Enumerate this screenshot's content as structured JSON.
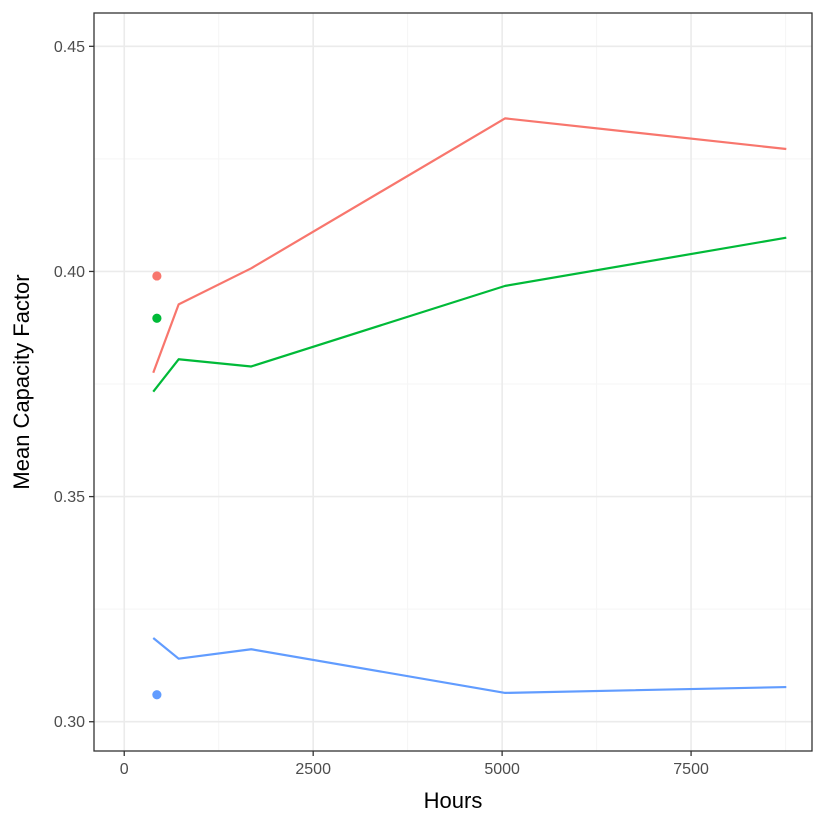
{
  "chart_data": {
    "type": "line",
    "title": "",
    "xlabel": "Hours",
    "ylabel": "Mean Capacity Factor",
    "xlim": [
      -400,
      9100
    ],
    "ylim": [
      0.2935,
      0.4574
    ],
    "x_ticks": [
      0,
      2500,
      5000,
      7500
    ],
    "x_tick_labels": [
      "0",
      "2500",
      "5000",
      "7500"
    ],
    "y_ticks": [
      0.3,
      0.35,
      0.4,
      0.45
    ],
    "y_tick_labels": [
      "0.30",
      "0.35",
      "0.40",
      "0.45"
    ],
    "x_minor_ticks": [
      1250,
      3750,
      6250,
      8750
    ],
    "y_minor_ticks": [
      0.325,
      0.375,
      0.425
    ],
    "grid": true,
    "legend": "none",
    "series": [
      {
        "color": "#F8766D",
        "lines": [
          {
            "x": [
              384,
              720,
              1680,
              5040,
              8760
            ],
            "y": [
              0.3775,
              0.3927,
              0.4007,
              0.434,
              0.4272
            ]
          }
        ],
        "points": [
          {
            "x": 432,
            "y": 0.399
          }
        ]
      },
      {
        "color": "#00BA38",
        "lines": [
          {
            "x": [
              384,
              720,
              1680,
              5040,
              8760
            ],
            "y": [
              0.3733,
              0.3805,
              0.3789,
              0.3968,
              0.4075
            ]
          }
        ],
        "points": [
          {
            "x": 432,
            "y": 0.3896
          }
        ]
      },
      {
        "color": "#619CFF",
        "lines": [
          {
            "x": [
              384,
              720,
              1680,
              5040,
              8760
            ],
            "y": [
              0.3186,
              0.314,
              0.3161,
              0.3064,
              0.3077
            ]
          }
        ],
        "points": [
          {
            "x": 432,
            "y": 0.306
          }
        ]
      }
    ],
    "colors": {
      "panel_border": "#333333",
      "grid_major": "#ebebeb",
      "grid_minor": "#f5f5f5",
      "tick_mark": "#333333"
    }
  }
}
